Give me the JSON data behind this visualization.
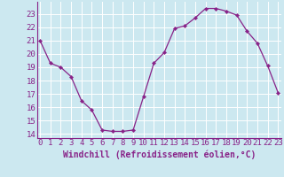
{
  "x": [
    0,
    1,
    2,
    3,
    4,
    5,
    6,
    7,
    8,
    9,
    10,
    11,
    12,
    13,
    14,
    15,
    16,
    17,
    18,
    19,
    20,
    21,
    22,
    23
  ],
  "y": [
    21.0,
    19.3,
    19.0,
    18.3,
    16.5,
    15.8,
    14.3,
    14.2,
    14.2,
    14.3,
    16.8,
    19.3,
    20.1,
    21.9,
    22.1,
    22.7,
    23.4,
    23.4,
    23.2,
    22.9,
    21.7,
    20.8,
    19.1,
    17.1
  ],
  "line_color": "#882288",
  "marker": "D",
  "marker_size": 2.2,
  "line_width": 0.9,
  "bg_color": "#cce8f0",
  "grid_color": "#ffffff",
  "xlabel": "Windchill (Refroidissement éolien,°C)",
  "yticks": [
    14,
    15,
    16,
    17,
    18,
    19,
    20,
    21,
    22,
    23
  ],
  "xticks": [
    0,
    1,
    2,
    3,
    4,
    5,
    6,
    7,
    8,
    9,
    10,
    11,
    12,
    13,
    14,
    15,
    16,
    17,
    18,
    19,
    20,
    21,
    22,
    23
  ],
  "xlim": [
    -0.3,
    23.3
  ],
  "ylim": [
    13.7,
    23.9
  ],
  "xlabel_fontsize": 7.0,
  "tick_fontsize": 6.5,
  "tick_color": "#882288",
  "axis_color": "#882288",
  "spine_color": "#882288"
}
